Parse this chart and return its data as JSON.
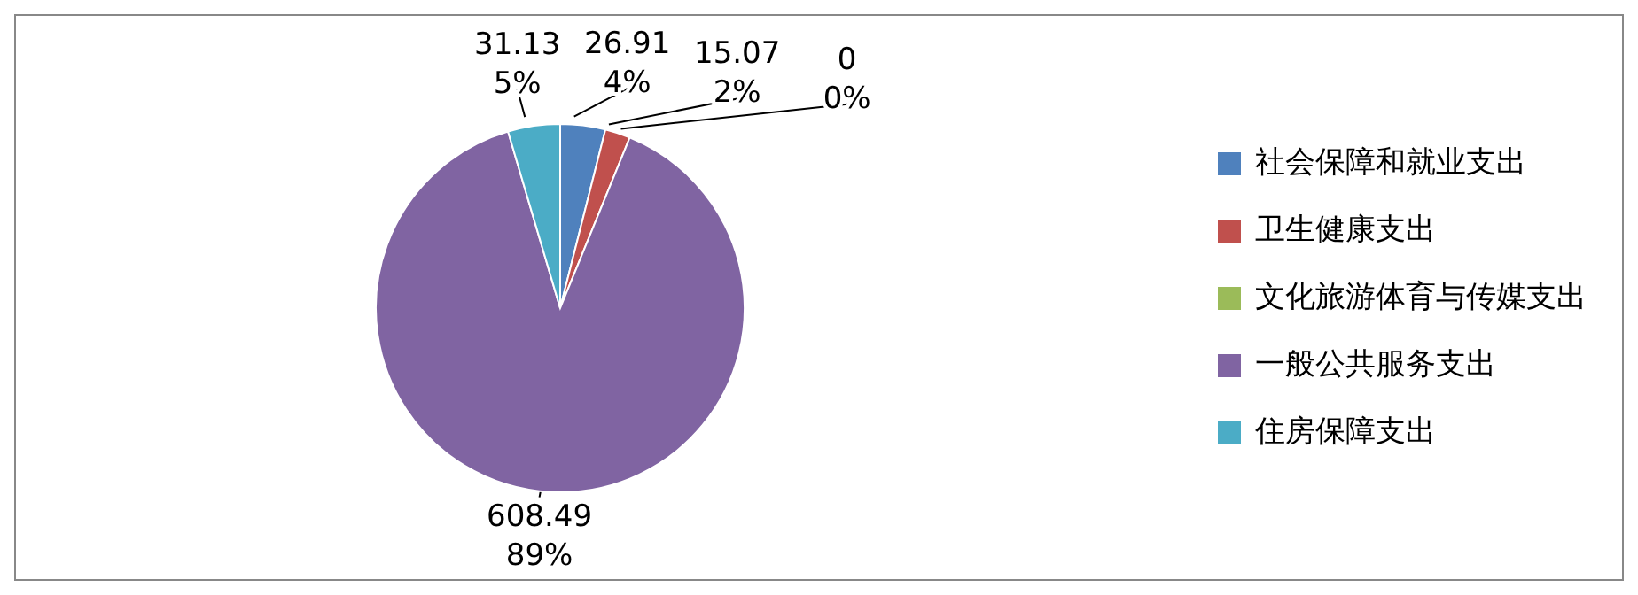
{
  "chart_data": {
    "type": "pie",
    "categories": [
      "社会保障和就业支出",
      "卫生健康支出",
      "文化旅游体育与传媒支出",
      "一般公共服务支出",
      "住房保障支出"
    ],
    "values": [
      26.91,
      15.07,
      0,
      608.49,
      31.13
    ],
    "colors": [
      "#4f81bd",
      "#c0504d",
      "#9bbb59",
      "#8064a2",
      "#4bacc6"
    ],
    "value_labels": [
      "26.91\n4%",
      "15.07\n2%",
      "0\n0%",
      "608.49\n89%",
      "31.13\n5%"
    ],
    "legend": "right"
  }
}
